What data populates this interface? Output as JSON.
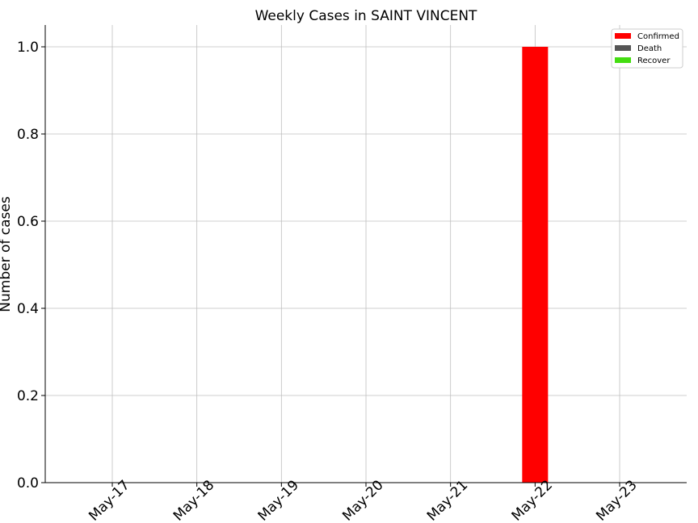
{
  "chart_data": {
    "type": "bar",
    "title": "Weekly Cases in SAINT VINCENT",
    "xlabel": "",
    "ylabel": "Number of cases",
    "categories": [
      "May-17",
      "May-18",
      "May-19",
      "May-20",
      "May-21",
      "May-22",
      "May-23"
    ],
    "series": [
      {
        "name": "Confirmed",
        "color": "#ff0000",
        "values": [
          0,
          0,
          0,
          0,
          0,
          1,
          0
        ]
      },
      {
        "name": "Death",
        "color": "#555555",
        "values": [
          0,
          0,
          0,
          0,
          0,
          0,
          0
        ]
      },
      {
        "name": "Recover",
        "color": "#44dd11",
        "values": [
          0,
          0,
          0,
          0,
          0,
          0,
          0
        ]
      }
    ],
    "ylim": [
      0,
      1.05
    ],
    "yticks": [
      "0.0",
      "0.2",
      "0.4",
      "0.6",
      "0.8",
      "1.0"
    ],
    "grid": true,
    "legend": "top-right"
  }
}
